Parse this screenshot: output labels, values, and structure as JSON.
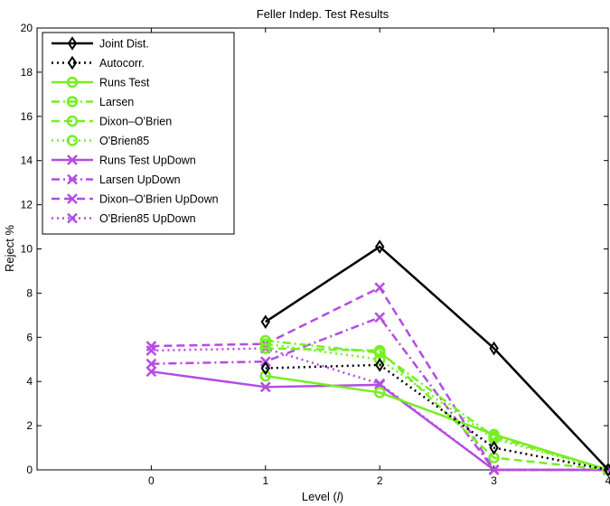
{
  "chart_data": {
    "type": "line",
    "title": "Feller Indep. Test Results",
    "xlabel_prefix": "Level (",
    "xlabel_var": "l",
    "xlabel_suffix": ")",
    "ylabel": "Reject %",
    "xlim": [
      -1,
      4
    ],
    "ylim": [
      0,
      20
    ],
    "xticks": [
      0,
      1,
      2,
      3,
      4
    ],
    "yticks": [
      0,
      2,
      4,
      6,
      8,
      10,
      12,
      14,
      16,
      18,
      20
    ],
    "grid": false,
    "legend_position": "top-left",
    "series": [
      {
        "name": "Joint Dist.",
        "x": [
          1,
          2,
          3,
          4
        ],
        "values": [
          6.7,
          10.1,
          5.5,
          0.0
        ],
        "color": "#000000",
        "dash": "solid",
        "marker": "diamond"
      },
      {
        "name": "Autocorr.",
        "x": [
          1,
          2,
          3,
          4
        ],
        "values": [
          4.6,
          4.75,
          1.0,
          0.0
        ],
        "color": "#000000",
        "dash": "dotted",
        "marker": "diamond"
      },
      {
        "name": "Runs Test",
        "x": [
          1,
          2,
          3,
          4
        ],
        "values": [
          4.25,
          3.5,
          1.6,
          0.0
        ],
        "color": "#77ee22",
        "dash": "solid",
        "marker": "circle"
      },
      {
        "name": "Larsen",
        "x": [
          1,
          2,
          3,
          4
        ],
        "values": [
          5.85,
          5.3,
          1.5,
          0.0
        ],
        "color": "#77ee22",
        "dash": "dashdot",
        "marker": "circle"
      },
      {
        "name": "Dixon–O'Brien",
        "x": [
          1,
          2,
          3,
          4
        ],
        "values": [
          5.5,
          5.4,
          0.55,
          0.0
        ],
        "color": "#77ee22",
        "dash": "dashed",
        "marker": "circle"
      },
      {
        "name": "O'Brien85",
        "x": [
          1,
          2,
          3,
          4
        ],
        "values": [
          5.7,
          5.0,
          1.4,
          0.0
        ],
        "color": "#77ee22",
        "dash": "dotted",
        "marker": "circle"
      },
      {
        "name": "Runs Test UpDown",
        "x": [
          0,
          1,
          2,
          3,
          4
        ],
        "values": [
          4.45,
          3.75,
          3.85,
          0.0,
          0.0
        ],
        "color": "#b44de0",
        "dash": "solid",
        "marker": "x"
      },
      {
        "name": "Larsen UpDown",
        "x": [
          0,
          1,
          2,
          3,
          4
        ],
        "values": [
          4.8,
          4.9,
          6.9,
          0.0,
          0.0
        ],
        "color": "#b44de0",
        "dash": "dashdot",
        "marker": "x"
      },
      {
        "name": "Dixon–O'Brien UpDown",
        "x": [
          0,
          1,
          2,
          3,
          4
        ],
        "values": [
          5.6,
          5.7,
          8.25,
          0.0,
          0.0
        ],
        "color": "#b44de0",
        "dash": "dashed",
        "marker": "x"
      },
      {
        "name": "O'Brien85 UpDown",
        "x": [
          0,
          1,
          2,
          3,
          4
        ],
        "values": [
          5.4,
          5.5,
          3.9,
          0.0,
          0.0
        ],
        "color": "#b44de0",
        "dash": "dotted",
        "marker": "x"
      }
    ]
  }
}
